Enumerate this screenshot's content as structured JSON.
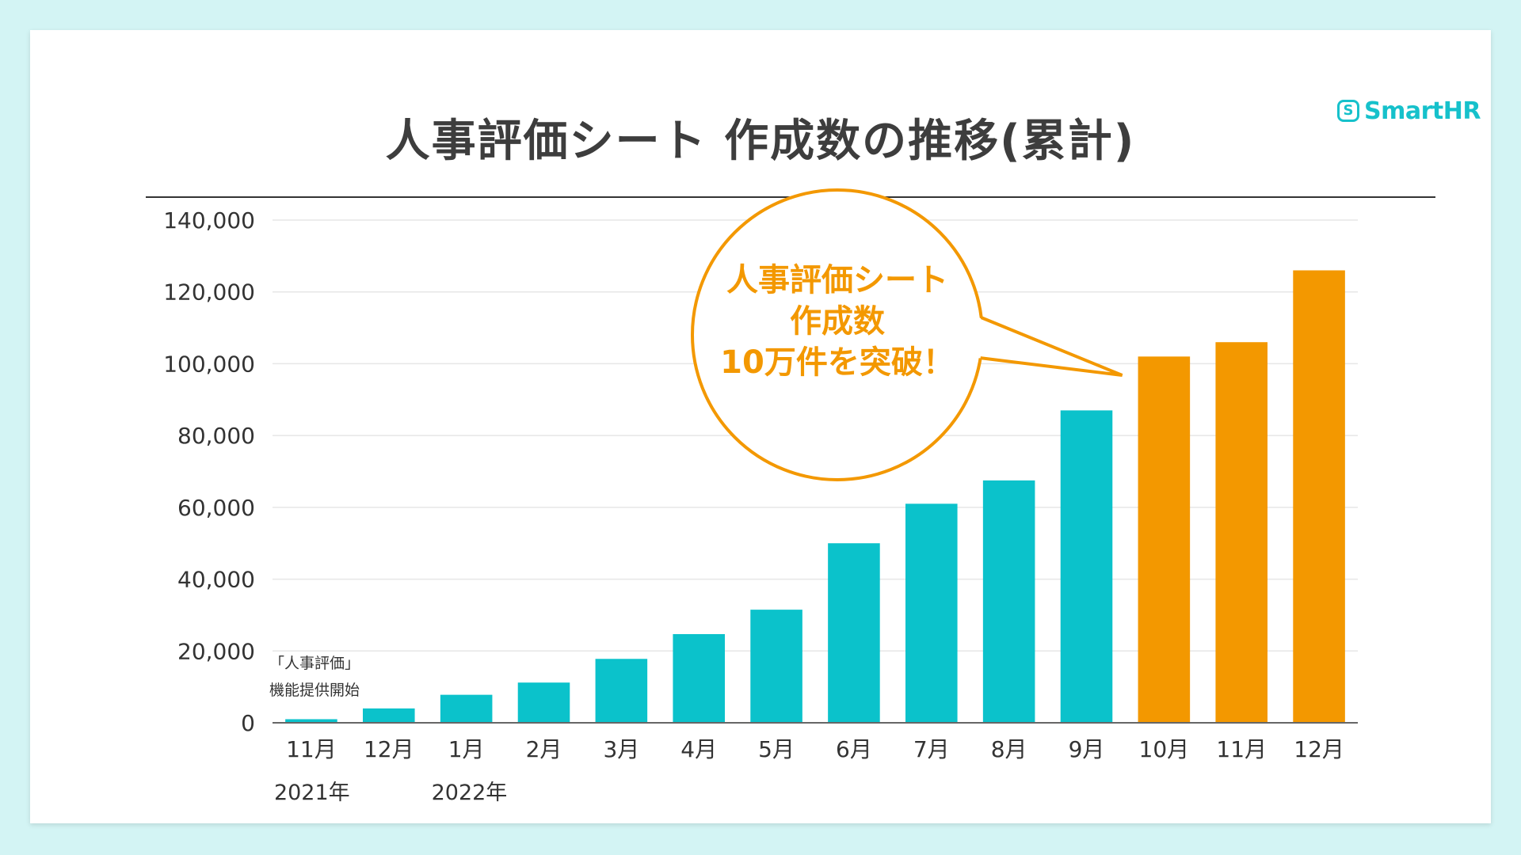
{
  "header": {
    "title": "人事評価シート 作成数の推移(累計)",
    "logo_text": "SmartHR",
    "logo_mark": "S"
  },
  "colors": {
    "teal": "#0bc2cb",
    "orange": "#f39800",
    "text": "#3d3d3d"
  },
  "chart_data": {
    "type": "bar",
    "title": "人事評価シート 作成数の推移(累計)",
    "categories": [
      "11月",
      "12月",
      "1月",
      "2月",
      "3月",
      "4月",
      "5月",
      "6月",
      "7月",
      "8月",
      "9月",
      "10月",
      "11月",
      "12月"
    ],
    "values": [
      1000,
      4000,
      7800,
      11200,
      17800,
      24700,
      31500,
      50000,
      61000,
      67500,
      87000,
      102000,
      106000,
      126000
    ],
    "highlight": [
      false,
      false,
      false,
      false,
      false,
      false,
      false,
      false,
      false,
      false,
      false,
      true,
      true,
      true
    ],
    "ylim": [
      0,
      140000
    ],
    "yticks": [
      0,
      20000,
      40000,
      60000,
      80000,
      100000,
      120000,
      140000
    ],
    "ytick_labels": [
      "0",
      "20,000",
      "40,000",
      "60,000",
      "80,000",
      "100,000",
      "120,000",
      "140,000"
    ],
    "year_labels": [
      {
        "category_index": 0,
        "label": "2021年"
      },
      {
        "category_index": 2,
        "label": "2022年"
      }
    ],
    "annotation": {
      "lines": [
        "「人事評価」",
        "機能提供開始"
      ]
    },
    "callout": {
      "lines": [
        "人事評価シート",
        "作成数",
        "10万件を突破！"
      ],
      "target_index": 11
    },
    "xlabel": "",
    "ylabel": "",
    "grid": true
  }
}
